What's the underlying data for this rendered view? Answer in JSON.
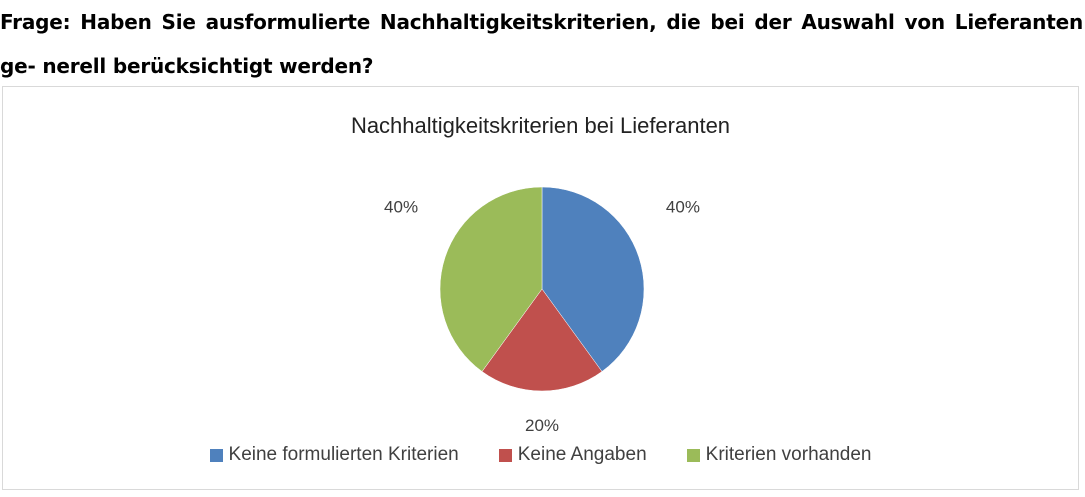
{
  "question": {
    "text": "Frage: Haben Sie ausformulierte Nachhaltigkeitskriterien, die bei der Auswahl von Lieferanten ge- nerell berücksichtigt werden?"
  },
  "chart_data": {
    "type": "pie",
    "title": "Nachhaltigkeitskriterien bei Lieferanten",
    "legend_position": "bottom",
    "start_angle_deg": 0,
    "direction": "clockwise",
    "slices": [
      {
        "label": "Keine formulierten Kriterien",
        "value": 40,
        "display": "40%",
        "color": "#4F81BD"
      },
      {
        "label": "Keine Angaben",
        "value": 20,
        "display": "20%",
        "color": "#C0504D"
      },
      {
        "label": "Kriterien vorhanden",
        "value": 40,
        "display": "40%",
        "color": "#9BBB59"
      }
    ]
  }
}
